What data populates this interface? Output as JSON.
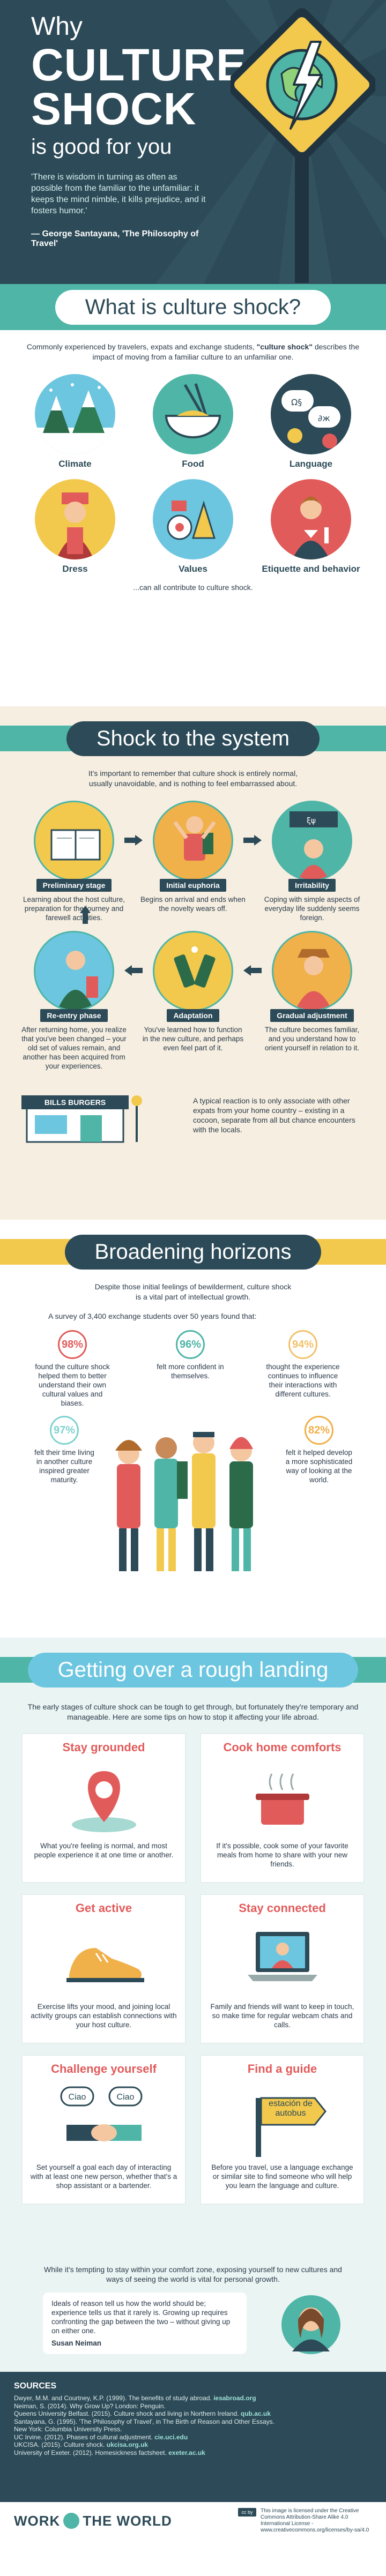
{
  "hero": {
    "why": "Why",
    "big": "CULTURE SHOCK",
    "sub": "is good for you",
    "quote": "'There is wisdom in turning as often as possible from the familiar to the unfamiliar: it keeps the mind nimble, it kills prejudice, and it fosters humor.'",
    "author": "— George Santayana, 'The Philosophy of Travel'",
    "colors": {
      "bg": "#2c4a57",
      "accent": "#4eb5a7",
      "sign": "#f2c94c"
    }
  },
  "what": {
    "title": "What is culture shock?",
    "intro_a": "Commonly experienced by travelers, expats and exchange students, ",
    "intro_bold": "\"culture shock\"",
    "intro_b": " describes the impact of moving from a familiar culture to an unfamiliar one.",
    "items": [
      {
        "label": "Climate",
        "icon": "snowy-trees-icon"
      },
      {
        "label": "Food",
        "icon": "noodle-bowl-icon"
      },
      {
        "label": "Language",
        "icon": "foreign-speech-icon"
      },
      {
        "label": "Dress",
        "icon": "traditional-dress-icon"
      },
      {
        "label": "Values",
        "icon": "rituals-icon"
      },
      {
        "label": "Etiquette and behavior",
        "icon": "waiter-icon"
      }
    ],
    "outro": "...can all contribute to culture shock."
  },
  "shock": {
    "title": "Shock to the system",
    "intro": "It's important to remember that culture shock is entirely normal, usually unavoidable, and is nothing to feel embarrassed about.",
    "stages": [
      {
        "tag": "Preliminary stage",
        "desc": "Learning about the host culture, preparation for the journey and farewell activities."
      },
      {
        "tag": "Initial euphoria",
        "desc": "Begins on arrival and ends when the novelty wears off."
      },
      {
        "tag": "Irritability",
        "desc": "Coping with simple aspects of everyday life suddenly seems foreign."
      },
      {
        "tag": "Re-entry phase",
        "desc": "After returning home, you realize that you've been changed – your old set of values remain, and another has been acquired from your experiences."
      },
      {
        "tag": "Adaptation",
        "desc": "You've learned how to function in the new culture, and perhaps even feel part of it."
      },
      {
        "tag": "Gradual adjustment",
        "desc": "The culture becomes familiar, and you understand how to orient yourself in relation to it."
      }
    ],
    "sign": "BILLS BURGERS",
    "note": "A typical reaction is to only associate with other expats from your home country – existing in a cocoon, separate from all but chance encounters with the locals."
  },
  "broad": {
    "title": "Broadening horizons",
    "intro": "Despite those initial feelings of bewilderment, culture shock is a vital part of intellectual growth.",
    "survey": "A survey of 3,400 exchange students over 50 years found that:",
    "stats": [
      {
        "value": "98%",
        "text": "found the culture shock helped them to better understand their own cultural values and biases."
      },
      {
        "value": "96%",
        "text": "felt more confident in themselves."
      },
      {
        "value": "94%",
        "text": "thought the experience continues to influence their interactions with different cultures."
      },
      {
        "value": "97%",
        "text": "felt their time living in another culture inspired greater maturity."
      },
      {
        "value": "82%",
        "text": "felt it helped develop a more sophisticated way of looking at the world."
      }
    ]
  },
  "landing": {
    "title": "Getting over a rough landing",
    "intro": "The early stages of culture shock can be tough to get through, but fortunately they're temporary and manageable. Here are some tips on how to stop it affecting your life abroad.",
    "tips": [
      {
        "title": "Stay grounded",
        "text": "What you're feeling is normal, and most people experience it at one time or another.",
        "icon": "map-pin-icon"
      },
      {
        "title": "Cook home comforts",
        "text": "If it's possible, cook some of your favorite meals from home to share with your new friends.",
        "icon": "cooking-pot-icon"
      },
      {
        "title": "Get active",
        "text": "Exercise lifts your mood, and joining local activity groups can establish connections with your host culture.",
        "icon": "running-shoe-icon"
      },
      {
        "title": "Stay connected",
        "text": "Family and friends will want to keep in touch, so make time for regular webcam chats and calls.",
        "icon": "laptop-webcam-icon"
      },
      {
        "title": "Challenge yourself",
        "text": "Set yourself a goal each day of interacting with at least one new person, whether that's a shop assistant or a bartender.",
        "icon": "handshake-icon"
      },
      {
        "title": "Find a guide",
        "text": "Before you travel, use a language exchange or similar site to find someone who will help you learn the language and culture.",
        "icon": "signpost-icon"
      }
    ],
    "ciao": "Ciao",
    "sign_text": "estación de autobus"
  },
  "closing": {
    "text": "While it's tempting to stay within your comfort zone, exposing yourself to new cultures and ways of seeing the world is vital for personal growth.",
    "quote": "Ideals of reason tell us how the world should be; experience tells us that it rarely is. Growing up requires confronting the gap between the two – without giving up on either one.",
    "author": "Susan Neiman"
  },
  "sources": {
    "title": "SOURCES",
    "items": [
      {
        "text": "Dwyer, M.M. and Courtney, K.P. (1999). The benefits of study abroad. ",
        "link": "iesabroad.org"
      },
      {
        "text": "Neiman, S. (2014). Why Grow Up? London: Penguin.",
        "link": ""
      },
      {
        "text": "Queens University Belfast. (2015). Culture shock and living in Northern Ireland. ",
        "link": "qub.ac.uk"
      },
      {
        "text": "Santayana, G. (1995). 'The Philosophy of Travel', in The Birth of Reason and Other Essays.",
        "link": ""
      },
      {
        "text": "New York: Columbia University Press.",
        "link": ""
      },
      {
        "text": "UC Irvine. (2012). Phases of cultural adjustment. ",
        "link": "cie.uci.edu"
      },
      {
        "text": "UKCISA. (2015). Culture shock. ",
        "link": "ukcisa.org.uk"
      },
      {
        "text": "University of Exeter. (2012). Homesickness factsheet. ",
        "link": "exeter.ac.uk"
      }
    ]
  },
  "footer": {
    "brand_a": "WORK",
    "brand_b": "THE WORLD",
    "cc": "cc by",
    "license": "This image is licensed under the Creative Commons Attribution-Share Alike 4.0 International License - www.creativecommons.org/licenses/by-sa/4.0"
  }
}
